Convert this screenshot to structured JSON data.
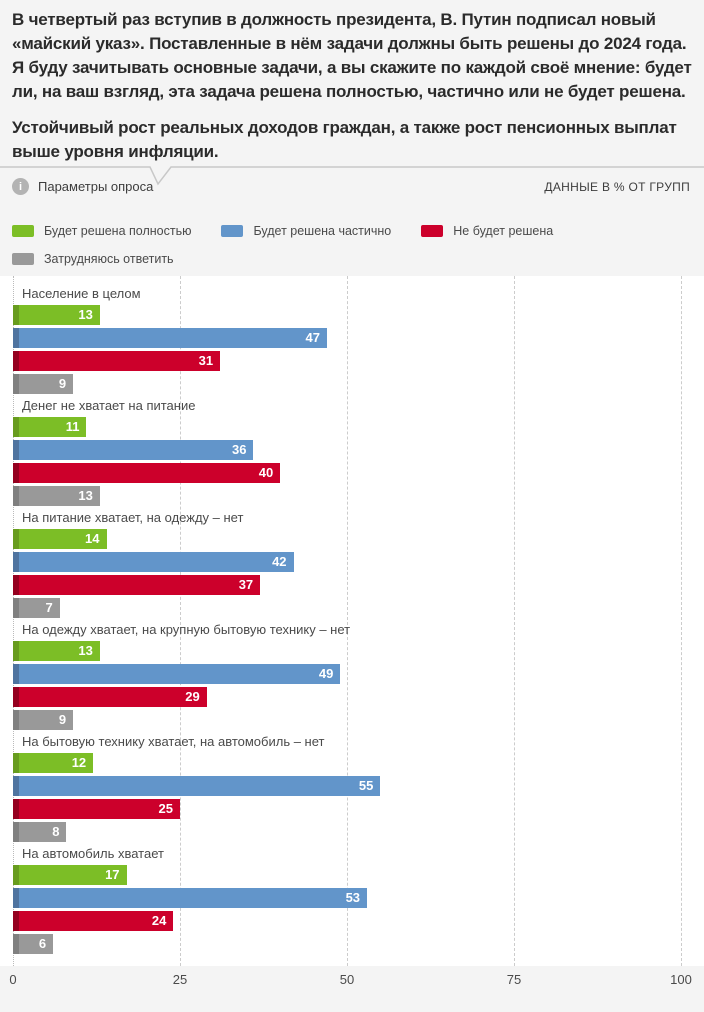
{
  "header": {
    "title": "В четвертый раз вступив в должность президента, В. Путин подписал новый «майский указ». Поставленные в нём задачи должны быть решены до 2024 года. Я буду зачитывать основные задачи, а вы скажите по каждой своё мнение: будет ли, на ваш взгляд, эта задача решена полностью, частично или не будет решена.",
    "subtitle": "Устойчивый рост реальных доходов граждан, а также рост пенсионных выплат выше уровня инфляции.",
    "params_label": "Параметры опроса",
    "info_icon_glyph": "i",
    "data_note": "ДАННЫЕ В % ОТ ГРУПП"
  },
  "colors": {
    "page_bg": "#f4f4f4",
    "plot_bg": "#ffffff",
    "gridline": "#cccccc",
    "divider": "#c8c8c8",
    "title_text": "#2b2b2b",
    "label_text": "#4a4a4a"
  },
  "legend_rows": [
    [
      0,
      1,
      2
    ],
    [
      3
    ]
  ],
  "chart_data": {
    "type": "bar",
    "orientation": "horizontal",
    "title": "Устойчивый рост реальных доходов граждан, а также рост пенсионных выплат выше уровня инфляции.",
    "unit": "% от групп",
    "xlim": [
      0,
      100
    ],
    "x_ticks": [
      0,
      25,
      50,
      75,
      100
    ],
    "grid": true,
    "legend_position": "top",
    "categories": [
      "Население в целом",
      "Денег не хватает на питание",
      "На питание хватает, на одежду – нет",
      "На одежду хватает, на крупную бытовую технику – нет",
      "На бытовую технику хватает, на автомобиль – нет",
      "На автомобиль хватает"
    ],
    "series": [
      {
        "name": "Будет решена полностью",
        "color": "#7cbe26",
        "edge_color": "#689c1e",
        "values": [
          13,
          11,
          14,
          13,
          12,
          17
        ]
      },
      {
        "name": "Будет решена частично",
        "color": "#6295ca",
        "edge_color": "#4f74a0",
        "values": [
          47,
          36,
          42,
          49,
          55,
          53
        ]
      },
      {
        "name": "Не будет решена",
        "color": "#cc002b",
        "edge_color": "#95001f",
        "values": [
          31,
          40,
          37,
          29,
          25,
          24
        ]
      },
      {
        "name": "Затрудняюсь ответить",
        "color": "#999999",
        "edge_color": "#808080",
        "values": [
          9,
          13,
          7,
          9,
          8,
          6
        ]
      }
    ]
  }
}
